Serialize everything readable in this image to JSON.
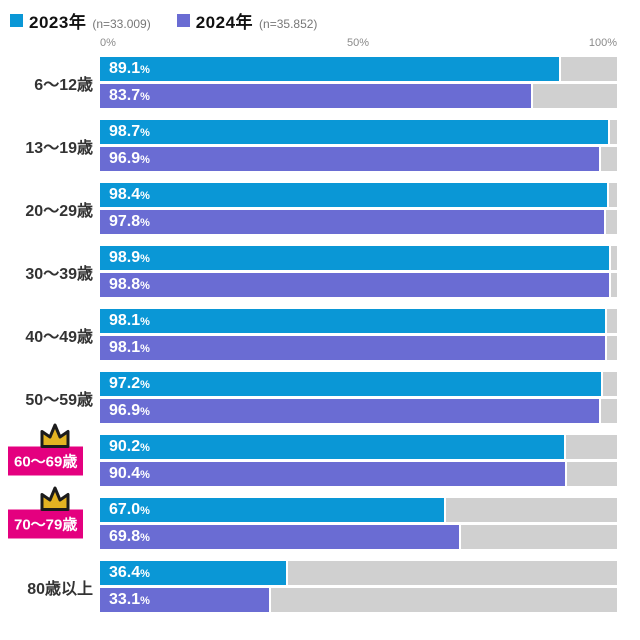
{
  "legend": [
    {
      "label": "2023年",
      "n_label": "(n=33.009)",
      "color": "#0a97d6"
    },
    {
      "label": "2024年",
      "n_label": "(n=35.852)",
      "color": "#6a6cd3"
    }
  ],
  "axis": {
    "ticks": [
      "0%",
      "50%",
      "100%"
    ]
  },
  "colors": {
    "series_2023": "#0a97d6",
    "series_2024": "#6a6cd3",
    "track": "#d0d0d0",
    "highlight_label_bg": "#e4007f",
    "highlight_label_text": "#ffffff",
    "crown_fill": "#e3b322",
    "crown_outline": "#1c1c1c"
  },
  "chart_data": {
    "type": "bar",
    "orientation": "horizontal",
    "categories": [
      "6〜12歳",
      "13〜19歳",
      "20〜29歳",
      "30〜39歳",
      "40〜49歳",
      "50〜59歳",
      "60〜69歳",
      "70〜79歳",
      "80歳以上"
    ],
    "series": [
      {
        "name": "2023年",
        "n_label": "(n=33.009)",
        "color": "#0a97d6",
        "values": [
          89.1,
          98.7,
          98.4,
          98.9,
          98.1,
          97.2,
          90.2,
          67.0,
          36.4
        ]
      },
      {
        "name": "2024年",
        "n_label": "(n=35.852)",
        "color": "#6a6cd3",
        "values": [
          83.7,
          96.9,
          97.8,
          98.8,
          98.1,
          96.9,
          90.4,
          69.8,
          33.1
        ]
      }
    ],
    "value_suffix": "%",
    "xlim": [
      0,
      100
    ],
    "tick_labels": [
      "0%",
      "50%",
      "100%"
    ],
    "grid": false,
    "legend_position": "top-left",
    "highlighted_categories": [
      "60〜69歳",
      "70〜79歳"
    ]
  }
}
